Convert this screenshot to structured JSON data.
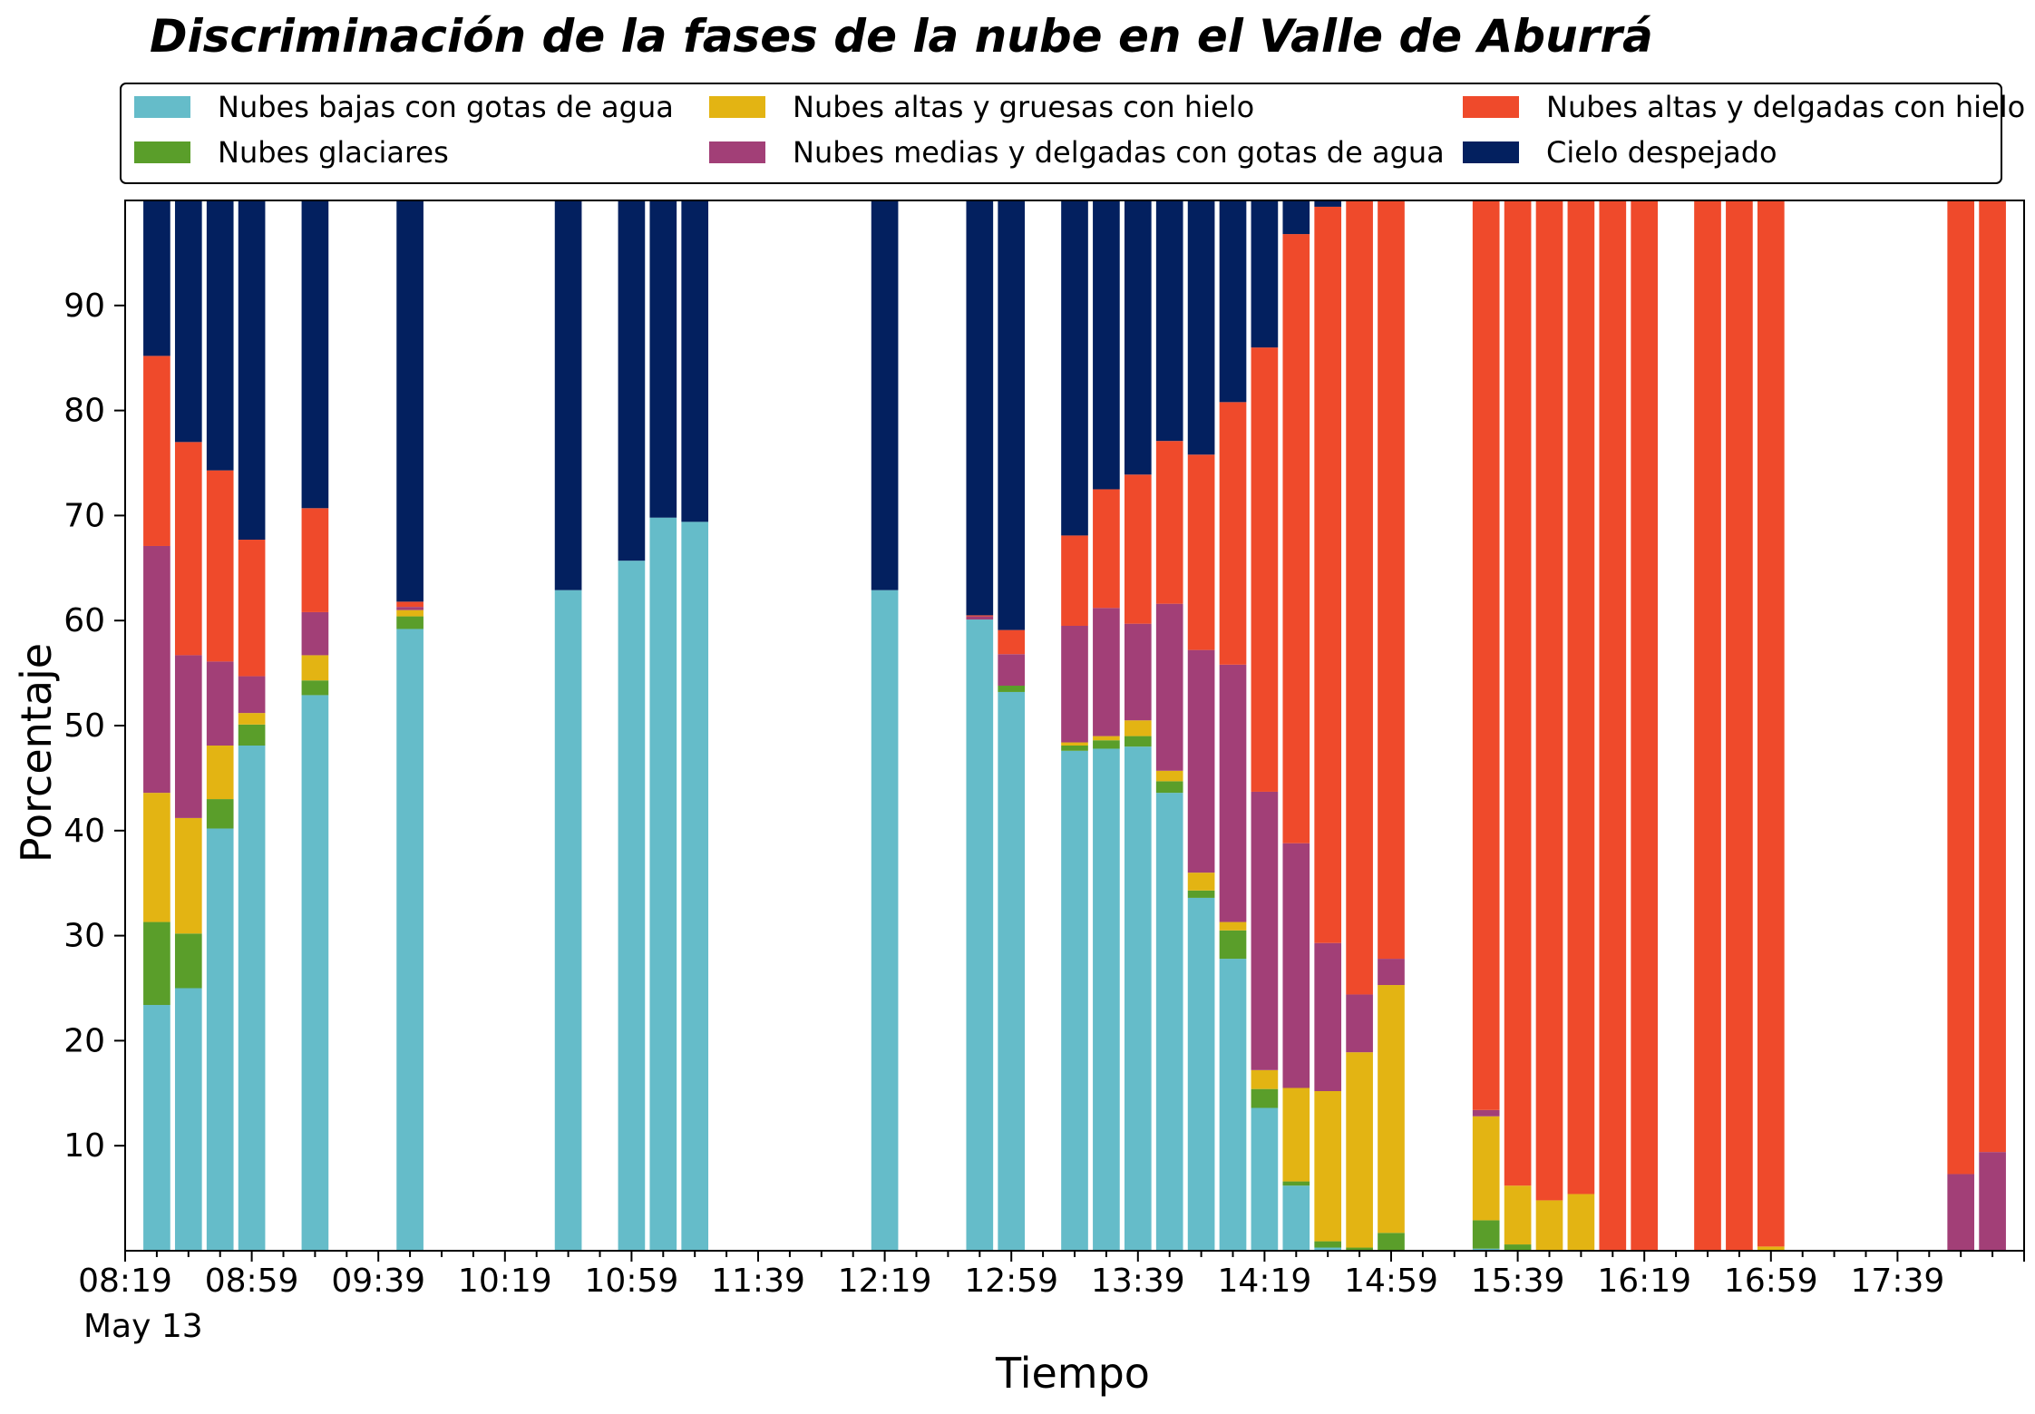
{
  "chart_data": {
    "type": "bar",
    "stacked": true,
    "title": "Discriminación de la fases de la nube en el Valle de Aburrá",
    "xlabel": "Tiempo",
    "ylabel": "Porcentaje",
    "ylim": [
      0,
      100
    ],
    "yticks": [
      10,
      20,
      30,
      40,
      50,
      60,
      70,
      80,
      90
    ],
    "xticks": [
      "08:19",
      "08:59",
      "09:39",
      "10:19",
      "10:59",
      "11:39",
      "12:19",
      "12:59",
      "13:39",
      "14:19",
      "14:59",
      "15:39",
      "16:19",
      "16:59",
      "17:39"
    ],
    "date_label": "May 13",
    "legend_position": "top",
    "grid": false,
    "x_unit": "minutes after 08:19",
    "x": [
      10,
      20,
      30,
      40,
      60,
      90,
      140,
      160,
      170,
      180,
      240,
      270,
      280,
      300,
      310,
      320,
      330,
      340,
      350,
      360,
      370,
      380,
      390,
      400,
      430,
      440,
      450,
      460,
      470,
      480,
      500,
      510,
      520,
      580,
      590
    ],
    "series": [
      {
        "name": "Nubes bajas con gotas de agua",
        "color": "#65bcc9",
        "values": [
          23.4,
          25.0,
          40.2,
          48.1,
          52.9,
          59.2,
          62.9,
          65.7,
          69.8,
          69.4,
          62.9,
          60.1,
          53.2,
          47.6,
          47.8,
          48.0,
          43.6,
          33.6,
          27.8,
          13.6,
          6.2,
          0.3,
          0.0,
          0.0,
          0.2,
          0.0,
          0.0,
          0.0,
          0.0,
          0.0,
          0.0,
          0.0,
          0.0,
          0.0,
          0.0
        ]
      },
      {
        "name": "Nubes glaciares",
        "color": "#5a9e2a",
        "values": [
          7.9,
          5.2,
          2.8,
          2.0,
          1.4,
          1.2,
          0.0,
          0.0,
          0.0,
          0.0,
          0.0,
          0.0,
          0.6,
          0.5,
          0.8,
          1.0,
          1.1,
          0.7,
          2.7,
          1.8,
          0.4,
          0.6,
          0.3,
          1.7,
          2.7,
          0.6,
          0.0,
          0.0,
          0.0,
          0.0,
          0.0,
          0.0,
          0.0,
          0.0,
          0.0
        ]
      },
      {
        "name": "Nubes altas y gruesas con hielo",
        "color": "#e3b413",
        "values": [
          12.3,
          11.0,
          5.1,
          1.1,
          2.4,
          0.6,
          0.0,
          0.0,
          0.0,
          0.0,
          0.0,
          0.0,
          0.0,
          0.3,
          0.4,
          1.5,
          1.0,
          1.7,
          0.8,
          1.8,
          8.9,
          14.3,
          18.6,
          23.6,
          9.9,
          5.6,
          4.8,
          5.4,
          0.0,
          0.0,
          0.0,
          0.0,
          0.4,
          0.0,
          0.0
        ]
      },
      {
        "name": "Nubes medias y delgadas con gotas de agua",
        "color": "#a23f77",
        "values": [
          23.5,
          15.5,
          8.0,
          3.5,
          4.1,
          0.3,
          0.0,
          0.0,
          0.0,
          0.0,
          0.0,
          0.3,
          3.0,
          11.1,
          12.2,
          9.2,
          15.9,
          21.2,
          24.5,
          26.5,
          23.3,
          14.1,
          5.5,
          2.5,
          0.6,
          0.0,
          0.0,
          0.0,
          0.0,
          0.0,
          0.0,
          0.0,
          0.0,
          7.3,
          9.4
        ]
      },
      {
        "name": "Nubes altas y delgadas con hielo",
        "color": "#ef4a2b",
        "values": [
          18.1,
          20.3,
          18.2,
          13.0,
          9.9,
          0.5,
          0.0,
          0.0,
          0.0,
          0.0,
          0.0,
          0.1,
          2.3,
          8.6,
          11.3,
          14.2,
          15.5,
          18.6,
          25.0,
          42.3,
          58.0,
          70.1,
          75.6,
          72.2,
          86.6,
          93.8,
          95.2,
          94.6,
          100.0,
          100.0,
          100.0,
          100.0,
          99.6,
          92.7,
          90.6
        ]
      },
      {
        "name": "Cielo despejado",
        "color": "#03205f",
        "values": [
          14.8,
          23.0,
          25.7,
          32.3,
          29.3,
          38.2,
          37.1,
          34.3,
          30.2,
          30.6,
          37.1,
          39.5,
          40.9,
          31.9,
          27.5,
          26.1,
          22.9,
          24.2,
          19.2,
          14.0,
          3.2,
          0.6,
          0.0,
          0.0,
          0.0,
          0.0,
          0.0,
          0.0,
          0.0,
          0.0,
          0.0,
          0.0,
          0.0,
          0.0,
          0.0
        ]
      }
    ]
  }
}
